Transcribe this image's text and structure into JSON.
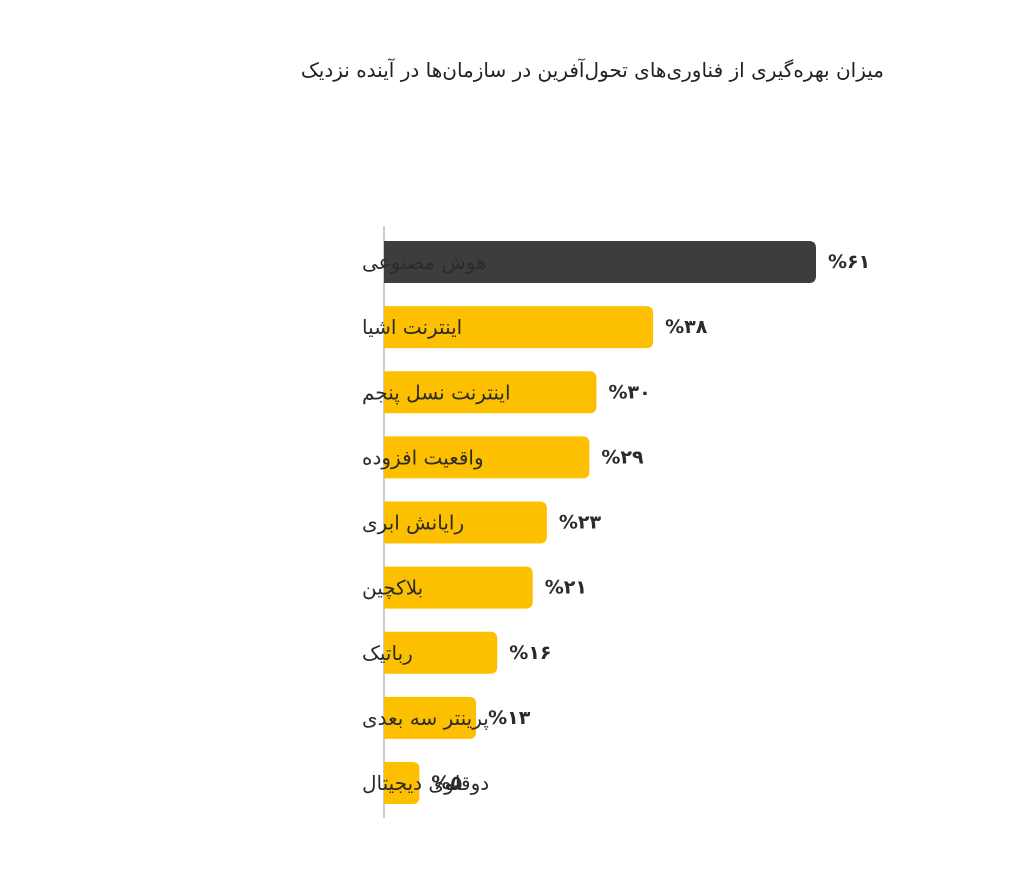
{
  "chart_data": {
    "type": "bar",
    "orientation": "horizontal",
    "title": "میزان بهره‌گیری از فناوری‌های تحول‌آفرین در سازمان‌ها در آینده نزدیک",
    "categories": [
      "هوش مصنوعی",
      "اینترنت اشیا",
      "اینترنت نسل پنجم",
      "واقعیت افزوده",
      "رایانش ابری",
      "بلاکچین",
      "رباتیک",
      "پرینتر سه بعدی",
      "دوقلوی دیجیتال"
    ],
    "values": [
      61,
      38,
      30,
      29,
      23,
      21,
      16,
      13,
      5
    ],
    "value_labels": [
      "%۶۱",
      "%۳۸",
      "%۳۰",
      "%۲۹",
      "%۲۳",
      "%۲۱",
      "%۱۶",
      "%۱۳",
      "%۵"
    ],
    "highlight_index": 0,
    "colors": {
      "highlight": "#3d3d3d",
      "bar": "#fcc000",
      "axis": "#bbbbbb",
      "text": "#2b2b2b"
    },
    "xlim": [
      0,
      61
    ],
    "grid": false,
    "legend": "none"
  }
}
